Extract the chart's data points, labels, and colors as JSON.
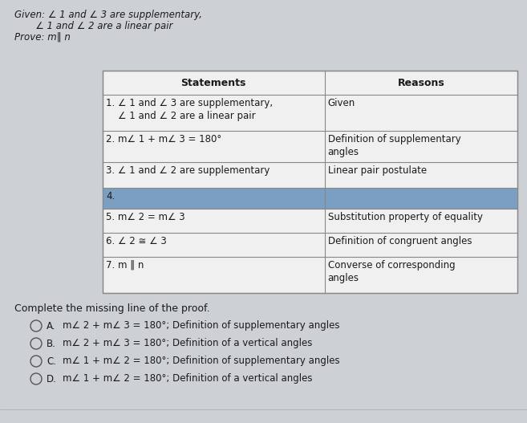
{
  "background_color": "#cdd0d4",
  "header_line1": "Given: ∠ 1 and ∠ 3 are supplementary,",
  "header_line2": "       ∠ 1 and ∠ 2 are a linear pair",
  "header_line3": "Prove: m‖ n",
  "col_headers": [
    "Statements",
    "Reasons"
  ],
  "rows": [
    {
      "statement": "1. ∠ 1 and ∠ 3 are supplementary,\n    ∠ 1 and ∠ 2 are a linear pair",
      "reason": "Given",
      "highlight": false
    },
    {
      "statement": "2. m∠ 1 + m∠ 3 = 180°",
      "reason": "Definition of supplementary\nangles",
      "highlight": false
    },
    {
      "statement": "3. ∠ 1 and ∠ 2 are supplementary",
      "reason": "Linear pair postulate",
      "highlight": false
    },
    {
      "statement": "4.",
      "reason": "",
      "highlight": true
    },
    {
      "statement": "5. m∠ 2 = m∠ 3",
      "reason": "Substitution property of equality",
      "highlight": false
    },
    {
      "statement": "6. ∠ 2 ≅ ∠ 3",
      "reason": "Definition of congruent angles",
      "highlight": false
    },
    {
      "statement": "7. m ‖ n",
      "reason": "Converse of corresponding\nangles",
      "highlight": false
    }
  ],
  "question": "Complete the missing line of the proof.",
  "options": [
    [
      "A.",
      "m∠ 2 + m∠ 3 = 180°; Definition of supplementary angles"
    ],
    [
      "B.",
      "m∠ 2 + m∠ 3 = 180°; Definition of a vertical angles"
    ],
    [
      "C.",
      "m∠ 1 + m∠ 2 = 180°; Definition of supplementary angles"
    ],
    [
      "D.",
      "m∠ 1 + m∠ 2 = 180°; Definition of a vertical angles"
    ]
  ],
  "highlight_color": "#7a9fc2",
  "table_bg": "#f0f0f0",
  "border_color": "#888888",
  "text_color": "#1a1a1a"
}
